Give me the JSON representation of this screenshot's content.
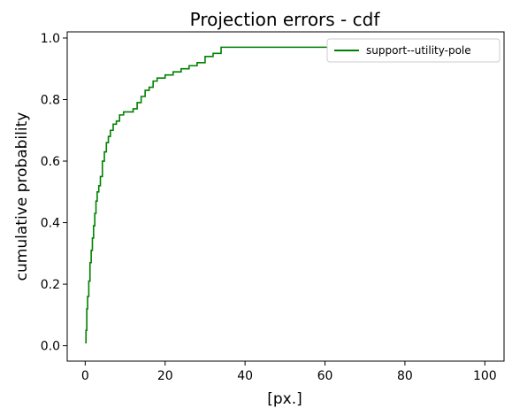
{
  "chart_data": {
    "type": "line",
    "title": "Projection errors - cdf",
    "xlabel": "[px.]",
    "ylabel": "cumulative probability",
    "xlim": [
      -4.5,
      104.8
    ],
    "ylim": [
      -0.05,
      1.02
    ],
    "xticks": [
      0,
      20,
      40,
      60,
      80,
      100
    ],
    "yticks": [
      0.0,
      0.2,
      0.4,
      0.6,
      0.8,
      1.0
    ],
    "xtick_labels": [
      "0",
      "20",
      "40",
      "60",
      "80",
      "100"
    ],
    "ytick_labels": [
      "0.0",
      "0.2",
      "0.4",
      "0.6",
      "0.8",
      "1.0"
    ],
    "legend_position": "top-right",
    "series": [
      {
        "name": "support--utility-pole",
        "color": "#008000",
        "x": [
          0.0,
          0.2,
          0.4,
          0.6,
          0.9,
          1.2,
          1.5,
          1.8,
          2.1,
          2.4,
          2.7,
          3.0,
          3.4,
          3.8,
          4.3,
          4.8,
          5.3,
          5.8,
          6.3,
          7.0,
          7.8,
          8.6,
          9.6,
          10.8,
          12.0,
          13.0,
          14.0,
          15.0,
          16.0,
          17.0,
          18.0,
          19.0,
          20.0,
          22.0,
          24.0,
          26.0,
          28.0,
          30.0,
          32.0,
          34.0,
          38.0,
          45.0,
          60.0,
          75.0,
          99.0
        ],
        "y": [
          0.01,
          0.05,
          0.12,
          0.16,
          0.21,
          0.27,
          0.31,
          0.35,
          0.39,
          0.43,
          0.47,
          0.5,
          0.52,
          0.55,
          0.6,
          0.63,
          0.66,
          0.68,
          0.7,
          0.72,
          0.73,
          0.75,
          0.76,
          0.76,
          0.77,
          0.79,
          0.81,
          0.83,
          0.84,
          0.86,
          0.87,
          0.87,
          0.88,
          0.89,
          0.9,
          0.91,
          0.92,
          0.94,
          0.95,
          0.97,
          0.97,
          0.97,
          0.97,
          0.97,
          0.97
        ]
      }
    ]
  }
}
